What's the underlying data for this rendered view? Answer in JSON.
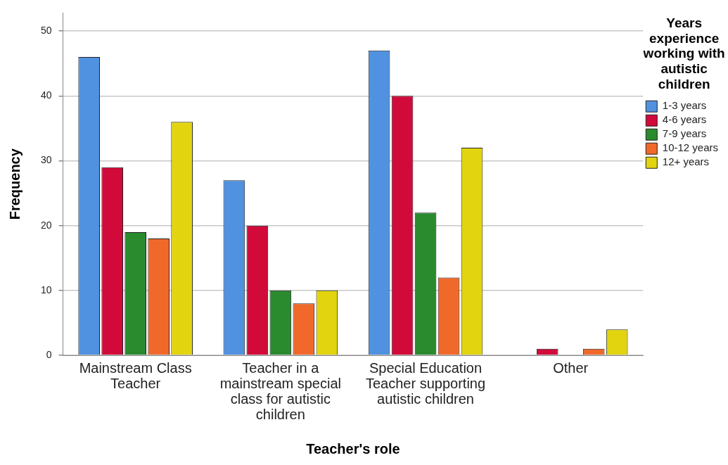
{
  "chart_data": {
    "type": "bar",
    "xlabel": "Teacher's role",
    "ylabel": "Frequency",
    "legend_title": "Years experience working with autistic children",
    "categories": [
      "Mainstream Class Teacher",
      "Teacher in a mainstream special class for autistic children",
      "Special Education Teacher supporting autistic children",
      "Other"
    ],
    "series": [
      {
        "name": "1-3 years",
        "color": "#5092e0",
        "values": [
          46,
          27,
          47,
          0
        ]
      },
      {
        "name": "4-6 years",
        "color": "#d10a3a",
        "values": [
          29,
          20,
          40,
          1
        ]
      },
      {
        "name": "7-9 years",
        "color": "#2a8a2e",
        "values": [
          19,
          10,
          22,
          0
        ]
      },
      {
        "name": "10-12 years",
        "color": "#f0692b",
        "values": [
          18,
          8,
          12,
          1
        ]
      },
      {
        "name": "12+ years",
        "color": "#e2d40f",
        "values": [
          36,
          10,
          32,
          4
        ]
      }
    ],
    "ylim": [
      0,
      52.8
    ],
    "yticks": [
      0,
      10,
      20,
      30,
      40,
      50
    ],
    "grid": "y",
    "legend": "right"
  }
}
